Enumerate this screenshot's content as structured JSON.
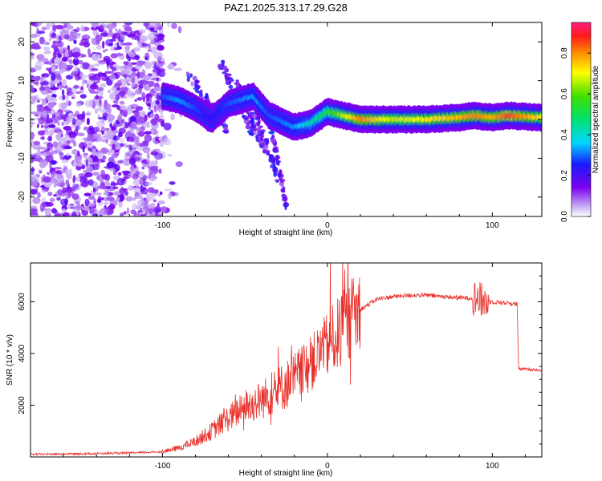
{
  "title": "PAZ1.2025.313.17.29.G28",
  "chart_data": [
    {
      "type": "heatmap",
      "xlabel": "Height of straight line (km)",
      "ylabel": "Frequency (Hz)",
      "xlim": [
        -180,
        130
      ],
      "ylim": [
        -25,
        25
      ],
      "xticks": [
        -100,
        0,
        100
      ],
      "yticks": [
        -20,
        -10,
        0,
        10,
        20
      ],
      "tick_labels_x": [
        "-100",
        "0",
        "100"
      ],
      "tick_labels_y": [
        "-20",
        "-10",
        "0",
        "10",
        "20"
      ],
      "colorbar": {
        "label": "Normalized spectral amplitude",
        "range": [
          0,
          0.95
        ],
        "ticks": [
          0.0,
          0.2,
          0.4,
          0.6,
          0.8
        ],
        "tick_labels": [
          "0.0",
          "0.2",
          "0.4",
          "0.6",
          "0.8"
        ]
      },
      "ridge": [
        {
          "x": -100,
          "y": 6,
          "amp": 0.3
        },
        {
          "x": -90,
          "y": 5,
          "amp": 0.35
        },
        {
          "x": -80,
          "y": 3,
          "amp": 0.3
        },
        {
          "x": -70,
          "y": 0,
          "amp": 0.25
        },
        {
          "x": -60,
          "y": 4,
          "amp": 0.3
        },
        {
          "x": -45,
          "y": 6,
          "amp": 0.35
        },
        {
          "x": -35,
          "y": 1,
          "amp": 0.3
        },
        {
          "x": -20,
          "y": -2,
          "amp": 0.35
        },
        {
          "x": -10,
          "y": -1,
          "amp": 0.45
        },
        {
          "x": 0,
          "y": 2,
          "amp": 0.55
        },
        {
          "x": 10,
          "y": 1,
          "amp": 0.7
        },
        {
          "x": 20,
          "y": 0,
          "amp": 0.85
        },
        {
          "x": 40,
          "y": 0,
          "amp": 0.7
        },
        {
          "x": 60,
          "y": 0,
          "amp": 0.75
        },
        {
          "x": 80,
          "y": 0.5,
          "amp": 0.8
        },
        {
          "x": 90,
          "y": 1,
          "amp": 0.85
        },
        {
          "x": 100,
          "y": 0.5,
          "amp": 0.8
        },
        {
          "x": 110,
          "y": 1,
          "amp": 0.9
        },
        {
          "x": 130,
          "y": 0.5,
          "amp": 0.75
        }
      ]
    },
    {
      "type": "line",
      "xlabel": "Height of straight line (km)",
      "ylabel": "SNR (10 * v/v)",
      "xlim": [
        -180,
        130
      ],
      "ylim": [
        0,
        7500
      ],
      "xticks": [
        -100,
        0,
        100
      ],
      "yticks": [
        2000,
        4000,
        6000
      ],
      "tick_labels_x": [
        "-100",
        "0",
        "100"
      ],
      "tick_labels_y": [
        "2000",
        "4000",
        "6000"
      ],
      "series": [
        {
          "name": "SNR",
          "color": "#e8302a",
          "x": [
            -180,
            -150,
            -120,
            -100,
            -90,
            -80,
            -70,
            -60,
            -50,
            -40,
            -30,
            -20,
            -10,
            0,
            10,
            20,
            30,
            40,
            50,
            60,
            70,
            80,
            90,
            95,
            100,
            110,
            115,
            116,
            120,
            130
          ],
          "y": [
            100,
            120,
            150,
            200,
            350,
            600,
            1000,
            1500,
            1900,
            2200,
            2600,
            3000,
            3600,
            4300,
            5000,
            5700,
            6100,
            6200,
            6250,
            6250,
            6200,
            6150,
            6150,
            6000,
            6000,
            5950,
            5900,
            3400,
            3400,
            3350
          ]
        }
      ]
    }
  ]
}
